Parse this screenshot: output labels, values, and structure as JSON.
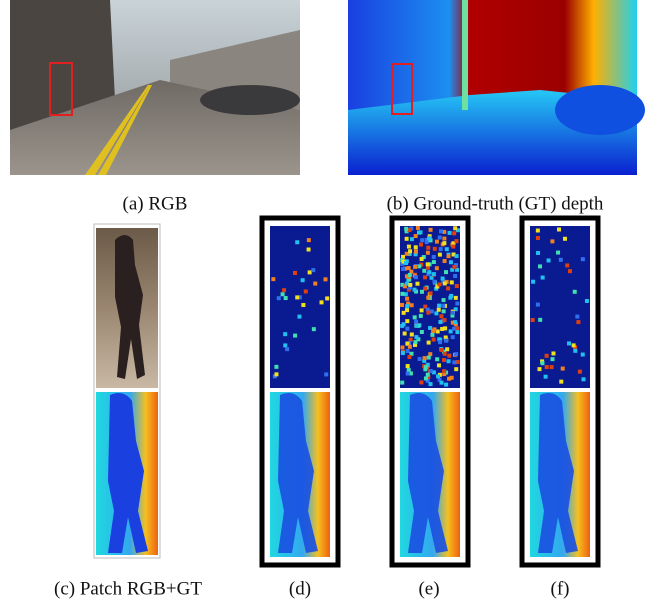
{
  "figure": {
    "captions": {
      "a": "(a) RGB",
      "b": "(b) Ground-truth (GT) depth",
      "c": "(c) Patch RGB+GT",
      "d": "(d)",
      "e": "(e)",
      "f": "(f)"
    }
  }
}
